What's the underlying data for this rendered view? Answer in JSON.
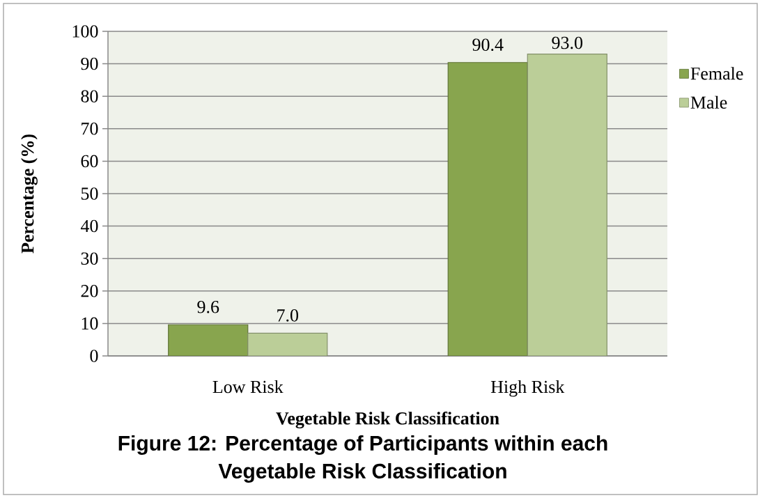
{
  "chart_data": {
    "type": "bar",
    "title": "Figure 12: Percentage of Participants within each Vegetable Risk Classification",
    "xlabel": "Vegetable Risk Classification",
    "ylabel": "Percentage (%)",
    "categories": [
      "Low Risk",
      "High Risk"
    ],
    "series": [
      {
        "name": "Female",
        "color": "#88a54e",
        "values": [
          9.6,
          90.4
        ],
        "value_labels": [
          "9.6",
          "90.4"
        ]
      },
      {
        "name": "Male",
        "color": "#bbce98",
        "values": [
          7.0,
          93.0
        ],
        "value_labels": [
          "7.0",
          "93.0"
        ]
      }
    ],
    "ylim": [
      0,
      100
    ],
    "yticks": [
      0,
      10,
      20,
      30,
      40,
      50,
      60,
      70,
      80,
      90,
      100
    ],
    "grid": "y",
    "legend": "right"
  }
}
